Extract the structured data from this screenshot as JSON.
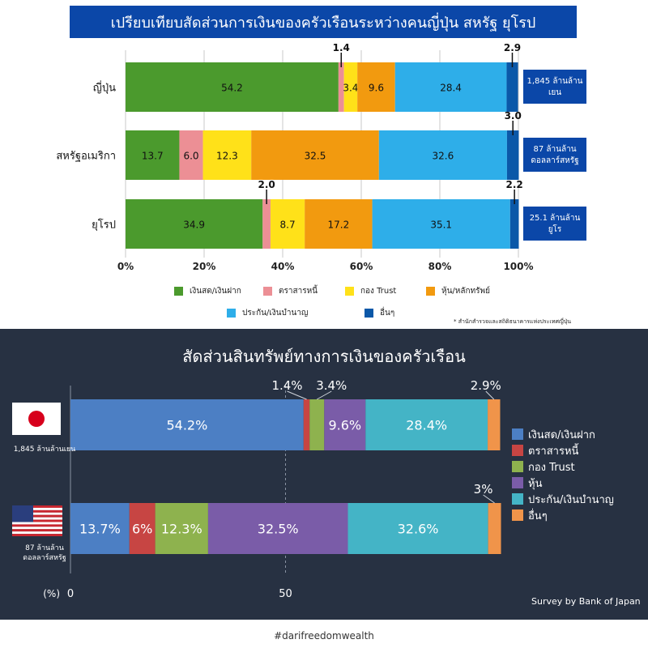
{
  "top": {
    "title": "เปรียบเทียบสัดส่วนการเงินของครัวเรือนระหว่างคนญี่ปุ่น สหรัฐ ยุโรป",
    "note": "* สำนักสำรวจและสถิติธนาคารแห่งประเทศญี่ปุ่น",
    "chart_data": {
      "type": "bar",
      "orientation": "horizontal",
      "stacked": true,
      "categories": [
        "ญี่ปุ่น",
        "สหรัฐอเมริกา",
        "ยุโรป"
      ],
      "series": [
        {
          "name": "เงินสด/เงินฝาก",
          "values": [
            54.2,
            13.7,
            34.9
          ],
          "color": "#4b9a2d"
        },
        {
          "name": "ตราสารหนี้",
          "values": [
            1.4,
            6.0,
            2.0
          ],
          "color": "#ec8f95"
        },
        {
          "name": "กอง Trust",
          "values": [
            3.4,
            12.3,
            8.7
          ],
          "color": "#ffe119"
        },
        {
          "name": "หุ้น/หลักทรัพย์",
          "values": [
            9.6,
            32.5,
            17.2
          ],
          "color": "#f29a0f"
        },
        {
          "name": "ประกัน/เงินบำนาญ",
          "values": [
            28.4,
            32.6,
            35.1
          ],
          "color": "#2eaee9"
        },
        {
          "name": "อื่นๆ",
          "values": [
            2.9,
            3.0,
            2.2
          ],
          "color": "#0b58a8"
        }
      ],
      "bar_labels": [
        [
          "54.2",
          "",
          "3.4",
          "9.6",
          "28.4",
          ""
        ],
        [
          "13.7",
          "6.0",
          "12.3",
          "32.5",
          "32.6",
          ""
        ],
        [
          "34.9",
          "",
          "8.7",
          "17.2",
          "35.1",
          ""
        ]
      ],
      "callouts": [
        [
          {
            "segment": 1,
            "text": "1.4"
          },
          {
            "segment": 5,
            "text": "2.9"
          }
        ],
        [
          {
            "segment": 5,
            "text": "3.0"
          }
        ],
        [
          {
            "segment": 1,
            "text": "2.0"
          },
          {
            "segment": 5,
            "text": "2.2"
          }
        ]
      ],
      "totals": [
        "1,845 ล้านล้าน\nเยน",
        "87 ล้านล้าน\nดอลลาร์สหรัฐ",
        "25.1 ล้านล้าน\nยูโร"
      ],
      "xlim": [
        0,
        100
      ],
      "xticks": [
        "0%",
        "20%",
        "40%",
        "60%",
        "80%",
        "100%"
      ],
      "grid": true,
      "legend_placement": "bottom"
    }
  },
  "bottom": {
    "title": "สัดส่วนสินทรัพย์ทางการเงินของครัวเรือน",
    "survey": "Survey by Bank of Japan",
    "pct_label": "(%)",
    "flags": [
      {
        "icon": "japan-flag-icon",
        "label": "1,845 ล้านล้านเยน"
      },
      {
        "icon": "usa-flag-icon",
        "label": "87 ล้านล้าน\nดอลลาร์สหรัฐ"
      }
    ],
    "chart_data": {
      "type": "bar",
      "orientation": "horizontal",
      "stacked": true,
      "categories": [
        "Japan",
        "USA"
      ],
      "series": [
        {
          "name": "เงินสด/เงินฝาก",
          "values": [
            54.2,
            13.7
          ],
          "color": "#4c7fc4"
        },
        {
          "name": "ตราสารหนี้",
          "values": [
            1.4,
            6.0
          ],
          "color": "#c74543"
        },
        {
          "name": "กอง Trust",
          "values": [
            3.4,
            12.3
          ],
          "color": "#8eb24e"
        },
        {
          "name": "หุ้น",
          "values": [
            9.6,
            32.5
          ],
          "color": "#7a5ca8"
        },
        {
          "name": "ประกัน/เงินบำนาญ",
          "values": [
            28.4,
            32.6
          ],
          "color": "#44b4c6"
        },
        {
          "name": "อื่นๆ",
          "values": [
            2.9,
            3.0
          ],
          "color": "#f0944a"
        }
      ],
      "bar_labels": [
        [
          "54.2%",
          "",
          "",
          "9.6%",
          "28.4%",
          ""
        ],
        [
          "13.7%",
          "6%",
          "12.3%",
          "32.5%",
          "32.6%",
          ""
        ]
      ],
      "callouts": [
        [
          {
            "segment": 1,
            "text": "1.4%"
          },
          {
            "segment": 2,
            "text": "3.4%"
          },
          {
            "segment": 5,
            "text": "2.9%"
          }
        ],
        [
          {
            "segment": 5,
            "text": "3%"
          }
        ]
      ],
      "xlim": [
        0,
        100
      ],
      "xticks": [
        "0",
        "50"
      ],
      "legend_placement": "right"
    }
  },
  "footer": {
    "hashtag": "#darifreedomwealth"
  }
}
